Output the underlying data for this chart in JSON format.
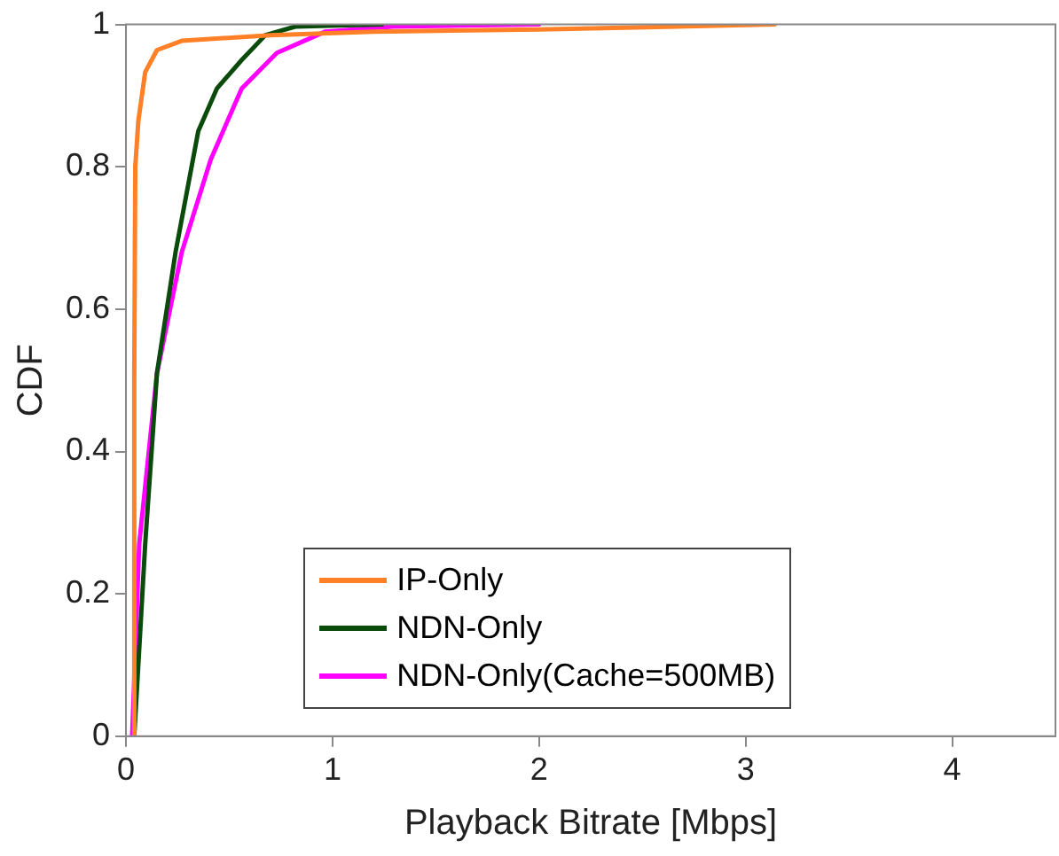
{
  "chart_data": {
    "type": "line",
    "xlabel": "Playback Bitrate [Mbps]",
    "ylabel": "CDF",
    "xlim": [
      0,
      4.5
    ],
    "xticks": [
      0,
      1,
      2,
      3,
      4
    ],
    "ylim": [
      0,
      1
    ],
    "yticks": [
      0,
      0.2,
      0.4,
      0.6,
      0.8,
      1
    ],
    "grid": false,
    "legend": "bottom",
    "marker": "none",
    "line_style": "solid",
    "series": [
      {
        "name": "IP-Only",
        "color": "#ff8026",
        "x": [
          0.04,
          0.04,
          0.045,
          0.06,
          0.093,
          0.15,
          0.27,
          0.7,
          1.2,
          2.0,
          3.14
        ],
        "values": [
          0,
          0.5,
          0.8,
          0.865,
          0.933,
          0.964,
          0.977,
          0.985,
          0.99,
          0.993,
          1
        ]
      },
      {
        "name": "NDN-Only",
        "color": "#0a4a0a",
        "x": [
          0.04,
          0.093,
          0.15,
          0.24,
          0.35,
          0.44,
          0.56,
          0.675,
          0.82,
          1.24
        ],
        "values": [
          0,
          0.27,
          0.51,
          0.68,
          0.85,
          0.91,
          0.95,
          0.985,
          0.997,
          1
        ]
      },
      {
        "name": "NDN-Only(Cache=500MB)",
        "color": "#ff00ff",
        "x": [
          0.03,
          0.064,
          0.15,
          0.27,
          0.41,
          0.56,
          0.73,
          0.965,
          1.29,
          2.0
        ],
        "values": [
          0,
          0.27,
          0.51,
          0.68,
          0.81,
          0.91,
          0.96,
          0.99,
          0.997,
          1
        ]
      }
    ]
  }
}
